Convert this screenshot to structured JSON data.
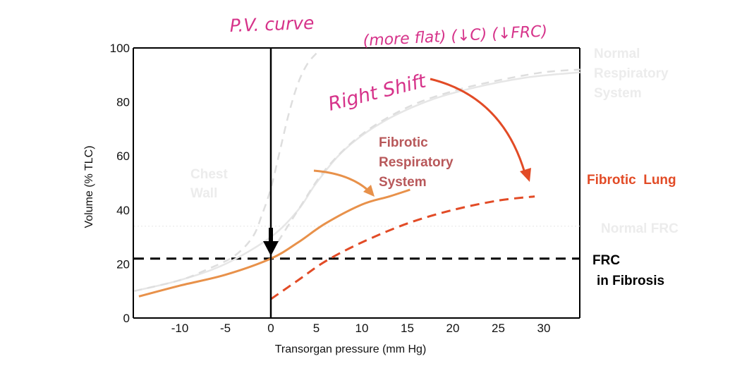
{
  "chart_data": {
    "type": "line",
    "xlabel": "Transorgan pressure (mm Hg)",
    "ylabel": "Volume (% TLC)",
    "xlim": [
      -15,
      34
    ],
    "ylim": [
      0,
      100
    ],
    "x_ticks": [
      -10,
      -5,
      0,
      5,
      10,
      15,
      20,
      25,
      30
    ],
    "y_ticks": [
      0,
      20,
      40,
      60,
      80,
      100
    ],
    "series": [
      {
        "name": "Normal Respiratory System",
        "style": "solid",
        "color": "#e6e6e6",
        "points": [
          [
            -15,
            10
          ],
          [
            -10,
            14
          ],
          [
            -5,
            20
          ],
          [
            0,
            30
          ],
          [
            3,
            40
          ],
          [
            5,
            50
          ],
          [
            8,
            62
          ],
          [
            12,
            72
          ],
          [
            17,
            80
          ],
          [
            22,
            85
          ],
          [
            28,
            89
          ],
          [
            34,
            91
          ]
        ]
      },
      {
        "name": "Chest Wall",
        "style": "dashed",
        "color": "#dedede",
        "points": [
          [
            -15,
            10
          ],
          [
            -10,
            14
          ],
          [
            -7,
            18
          ],
          [
            -4,
            23
          ],
          [
            -2,
            30
          ],
          [
            -1,
            38
          ],
          [
            0,
            48
          ],
          [
            1,
            62
          ],
          [
            2,
            76
          ],
          [
            3,
            87
          ],
          [
            4,
            94
          ],
          [
            5,
            98
          ]
        ]
      },
      {
        "name": "",
        "style": "dashed",
        "color": "#dedede",
        "points": [
          [
            0,
            24
          ],
          [
            3,
            40
          ],
          [
            6,
            55
          ],
          [
            10,
            68
          ],
          [
            15,
            78
          ],
          [
            20,
            84
          ],
          [
            25,
            88
          ],
          [
            30,
            91
          ],
          [
            34,
            92
          ]
        ]
      },
      {
        "name": "Fibrotic Respiratory System",
        "style": "solid",
        "color": "#e8914a",
        "points": [
          [
            -14.5,
            8
          ],
          [
            -10,
            12
          ],
          [
            -5,
            16
          ],
          [
            0,
            22
          ],
          [
            3,
            28
          ],
          [
            6,
            35
          ],
          [
            10,
            42
          ],
          [
            13,
            45
          ],
          [
            15.3,
            47.5
          ]
        ]
      },
      {
        "name": "Fibrotic Lung",
        "style": "dashed",
        "color": "#e24b26",
        "points": [
          [
            0,
            7
          ],
          [
            3,
            14
          ],
          [
            6,
            21
          ],
          [
            10,
            28
          ],
          [
            15,
            35
          ],
          [
            20,
            40
          ],
          [
            25,
            43.5
          ],
          [
            29,
            45
          ]
        ]
      }
    ],
    "reference_lines": [
      {
        "label": "Normal FRC",
        "y": 34,
        "style": "dotted",
        "color": "#e6e6e6"
      },
      {
        "label": "FRC in Fibrosis",
        "y": 22,
        "style": "dashed",
        "color": "#000000"
      }
    ],
    "vertical_line_x": 0,
    "labels": {
      "normal_rs": [
        "Normal",
        "Respiratory",
        "System"
      ],
      "chest_wall": [
        "Chest",
        "Wall"
      ],
      "fibrotic_rs": [
        "Fibrotic",
        "Respiratory",
        "System"
      ],
      "fibrotic_lung": "Fibrotic  Lung",
      "normal_frc": "Normal FRC",
      "frc_fibrosis": [
        "FRC",
        "in Fibrosis"
      ]
    },
    "annotations": {
      "pv_curve": "P.V. curve",
      "more_flat": "(more flat) (↓C) (↓FRC)",
      "right_shift": "Right Shift"
    },
    "colors": {
      "normal_gray": "#e6e6e6",
      "label_gray": "#ececec",
      "fibrotic_rs_text": "#b8585a",
      "fibrotic_orange": "#e8914a",
      "fibrotic_red": "#e24b26",
      "handwriting_pink": "#d6338a"
    }
  }
}
